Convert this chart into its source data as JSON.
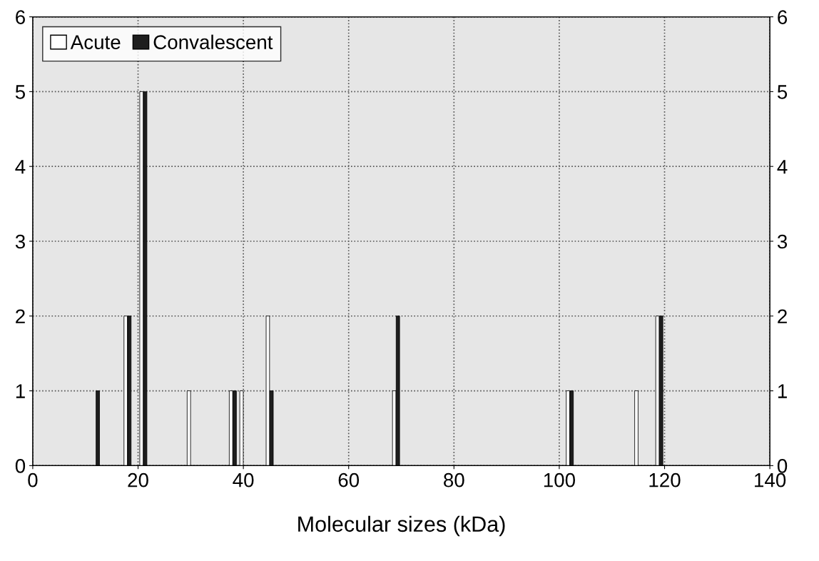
{
  "chart_data": {
    "type": "bar",
    "xlabel": "Molecular sizes (kDa)",
    "series": [
      {
        "name": "Acute",
        "color": "#ffffff",
        "x": [
          18,
          21,
          30,
          38,
          40,
          45,
          69,
          102,
          115,
          119
        ],
        "values": [
          2,
          5,
          1,
          1,
          1,
          2,
          1,
          1,
          1,
          2
        ]
      },
      {
        "name": "Convalescent",
        "color": "#1e1e1e",
        "x": [
          12,
          18,
          21,
          38,
          45,
          69,
          102,
          119
        ],
        "values": [
          1,
          2,
          5,
          1,
          1,
          2,
          1,
          2
        ]
      }
    ],
    "xlim": [
      0,
      140
    ],
    "xticks": [
      0,
      20,
      40,
      60,
      80,
      100,
      120,
      140
    ],
    "ylim": [
      0,
      6
    ],
    "yticks": [
      0,
      1,
      2,
      3,
      4,
      5,
      6
    ],
    "y2lim": [
      0,
      6
    ],
    "y2ticks": [
      0,
      1,
      2,
      3,
      4,
      5,
      6
    ],
    "grid": true,
    "legend": "top left"
  }
}
